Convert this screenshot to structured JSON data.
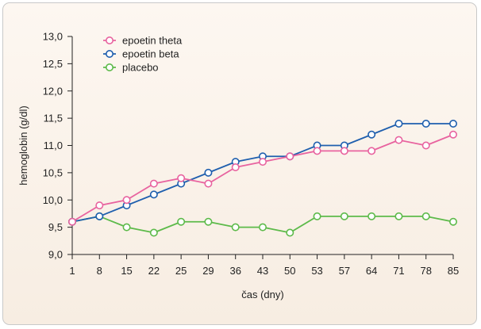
{
  "chart_data": {
    "type": "line",
    "title": "",
    "xlabel": "čas (dny)",
    "ylabel": "hemoglobin (g/dl)",
    "categories": [
      "1",
      "8",
      "15",
      "22",
      "25",
      "29",
      "36",
      "43",
      "50",
      "53",
      "57",
      "64",
      "71",
      "78",
      "85"
    ],
    "ylim": [
      9.0,
      13.0
    ],
    "yticks": [
      "9,0",
      "9,5",
      "10,0",
      "10,5",
      "11,0",
      "11,5",
      "12,0",
      "12,5",
      "13,0"
    ],
    "ytick_values": [
      9.0,
      9.5,
      10.0,
      10.5,
      11.0,
      11.5,
      12.0,
      12.5,
      13.0
    ],
    "legend_position": "top-left",
    "grid": false,
    "series": [
      {
        "name": "epoetin theta",
        "color": "#e8639f",
        "values": [
          9.6,
          9.9,
          10.0,
          10.3,
          10.4,
          10.3,
          10.6,
          10.7,
          10.8,
          10.9,
          10.9,
          10.9,
          11.1,
          11.0,
          11.2
        ]
      },
      {
        "name": "epoetin beta",
        "color": "#1f5fae",
        "values": [
          9.6,
          9.7,
          9.9,
          10.1,
          10.3,
          10.5,
          10.7,
          10.8,
          10.8,
          11.0,
          11.0,
          11.2,
          11.4,
          11.4,
          11.4
        ]
      },
      {
        "name": "placebo",
        "color": "#5dba4a",
        "values": [
          9.6,
          9.7,
          9.5,
          9.4,
          9.6,
          9.6,
          9.5,
          9.5,
          9.4,
          9.7,
          9.7,
          9.7,
          9.7,
          9.7,
          9.6
        ]
      }
    ]
  }
}
